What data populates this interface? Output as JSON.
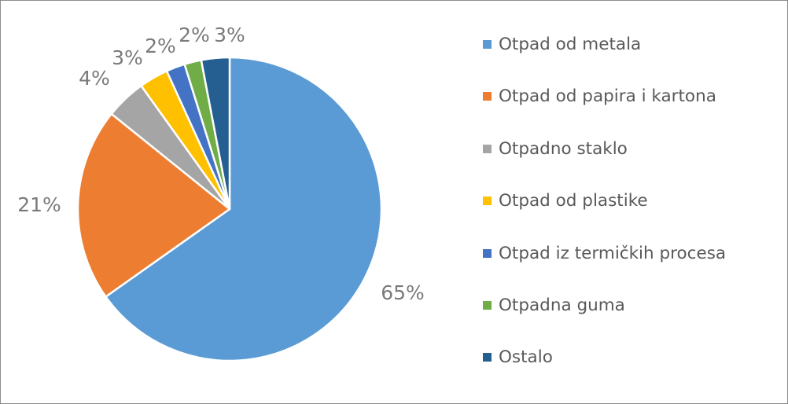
{
  "chart_data": {
    "type": "pie",
    "title": "",
    "legend_position": "right",
    "start_angle_deg": 0,
    "direction": "clockwise",
    "slices": [
      {
        "label": "Otpad od metala",
        "value": 65.2,
        "display": "65%",
        "color": "#5b9bd5"
      },
      {
        "label": "Otpad od papira i kartona",
        "value": 20.6,
        "display": "21%",
        "color": "#ed7d31"
      },
      {
        "label": "Otpadno staklo",
        "value": 4.3,
        "display": "4%",
        "color": "#a5a5a5"
      },
      {
        "label": "Otpad od plastike",
        "value": 3.1,
        "display": "3%",
        "color": "#ffc000"
      },
      {
        "label": "Otpad iz termičkih procesa",
        "value": 2.0,
        "display": "2%",
        "color": "#4472c4"
      },
      {
        "label": "Otpadna guma",
        "value": 1.8,
        "display": "2%",
        "color": "#70ad47"
      },
      {
        "label": "Ostalo",
        "value": 3.0,
        "display": "3%",
        "color": "#255e91"
      }
    ]
  }
}
